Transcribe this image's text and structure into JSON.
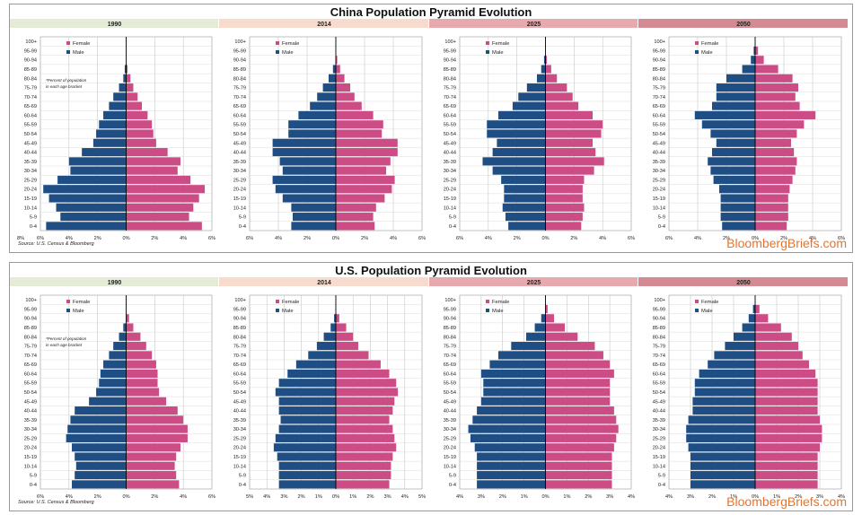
{
  "brand": "BloombergBriefs.com",
  "panels": [
    {
      "title": "China Population Pyramid Evolution",
      "source": "Source: U.S. Census & Bloomberg",
      "header_colors": [
        "#e4ecd8",
        "#f7dccd",
        "#e8a9ae",
        "#d48a92"
      ],
      "note": [
        "*Percent of population",
        "in each age bracket"
      ],
      "chart_data": [
        {
          "type": "bar",
          "year": "1990",
          "xlim": [
            -6,
            6
          ],
          "xticks": [
            -8,
            -6,
            -4,
            -2,
            0,
            2,
            4,
            6
          ],
          "xtick_labels": [
            "8%",
            "6%",
            "4%",
            "2%",
            "0%",
            "2%",
            "4%",
            "6%"
          ],
          "categories": [
            "0-4",
            "5-9",
            "10-14",
            "15-19",
            "20-24",
            "25-29",
            "30-34",
            "35-39",
            "40-44",
            "45-49",
            "50-54",
            "55-59",
            "60-64",
            "65-69",
            "70-74",
            "75-79",
            "80-84",
            "85-89",
            "90-94",
            "95-99",
            "100+"
          ],
          "series": [
            {
              "name": "Female",
              "color": "#cc4d86",
              "values": [
                5.3,
                4.4,
                4.7,
                5.1,
                5.5,
                4.5,
                3.6,
                3.8,
                2.9,
                2.1,
                1.9,
                1.8,
                1.5,
                1.1,
                0.8,
                0.5,
                0.3,
                0.1,
                0,
                0,
                0
              ]
            },
            {
              "name": "Male",
              "color": "#1f4e84",
              "values": [
                -5.6,
                -4.6,
                -4.9,
                -5.4,
                -5.8,
                -4.8,
                -3.9,
                -4.0,
                -3.1,
                -2.3,
                -2.1,
                -1.9,
                -1.6,
                -1.2,
                -0.9,
                -0.5,
                -0.2,
                -0.1,
                0,
                0,
                0
              ]
            }
          ]
        },
        {
          "type": "bar",
          "year": "2014",
          "xlim": [
            -6,
            6
          ],
          "xticks": [
            -6,
            -4,
            -2,
            0,
            2,
            4,
            6
          ],
          "xtick_labels": [
            "6%",
            "4%",
            "2%",
            "0%",
            "2%",
            "4%",
            "6%"
          ],
          "categories": [
            "0-4",
            "5-9",
            "10-14",
            "15-19",
            "20-24",
            "25-29",
            "30-34",
            "35-39",
            "40-44",
            "45-49",
            "50-54",
            "55-59",
            "60-64",
            "65-69",
            "70-74",
            "75-79",
            "80-84",
            "85-89",
            "90-94",
            "95-99",
            "100+"
          ],
          "series": [
            {
              "name": "Female",
              "color": "#cc4d86",
              "values": [
                2.7,
                2.6,
                2.8,
                3.4,
                3.9,
                4.1,
                3.5,
                3.8,
                4.3,
                4.3,
                3.2,
                3.3,
                2.6,
                1.8,
                1.3,
                1.0,
                0.6,
                0.3,
                0.1,
                0,
                0
              ]
            },
            {
              "name": "Male",
              "color": "#1f4e84",
              "values": [
                -3.1,
                -3.0,
                -3.1,
                -3.7,
                -4.2,
                -4.4,
                -3.7,
                -3.9,
                -4.4,
                -4.4,
                -3.3,
                -3.3,
                -2.6,
                -1.8,
                -1.3,
                -0.9,
                -0.5,
                -0.2,
                0,
                0,
                0
              ]
            }
          ]
        },
        {
          "type": "bar",
          "year": "2025",
          "xlim": [
            -6,
            6
          ],
          "xticks": [
            -6,
            -4,
            -2,
            0,
            2,
            4,
            6
          ],
          "xtick_labels": [
            "6%",
            "4%",
            "2%",
            "0%",
            "2%",
            "4%",
            "6%"
          ],
          "categories": [
            "0-4",
            "5-9",
            "10-14",
            "15-19",
            "20-24",
            "25-29",
            "30-34",
            "35-39",
            "40-44",
            "45-49",
            "50-54",
            "55-59",
            "60-64",
            "65-69",
            "70-74",
            "75-79",
            "80-84",
            "85-89",
            "90-94",
            "95-99",
            "100+"
          ],
          "series": [
            {
              "name": "Female",
              "color": "#cc4d86",
              "values": [
                2.5,
                2.6,
                2.7,
                2.6,
                2.6,
                2.7,
                3.4,
                4.1,
                3.5,
                3.3,
                3.9,
                4.0,
                3.3,
                2.3,
                1.9,
                1.5,
                0.8,
                0.4,
                0.1,
                0,
                0
              ]
            },
            {
              "name": "Male",
              "color": "#1f4e84",
              "values": [
                -2.6,
                -2.8,
                -3.0,
                -2.9,
                -2.9,
                -3.1,
                -3.7,
                -4.4,
                -3.7,
                -3.4,
                -4.1,
                -4.1,
                -3.3,
                -2.3,
                -1.9,
                -1.3,
                -0.6,
                -0.3,
                -0.1,
                0,
                0
              ]
            }
          ]
        },
        {
          "type": "bar",
          "year": "2050",
          "xlim": [
            -6,
            6
          ],
          "xticks": [
            -6,
            -4,
            -2,
            0,
            2,
            4,
            6
          ],
          "xtick_labels": [
            "6%",
            "4%",
            "2%",
            "0%",
            "2%",
            "4%",
            "6%"
          ],
          "categories": [
            "0-4",
            "5-9",
            "10-14",
            "15-19",
            "20-24",
            "25-29",
            "30-34",
            "35-39",
            "40-44",
            "45-49",
            "50-54",
            "55-59",
            "60-64",
            "65-69",
            "70-74",
            "75-79",
            "80-84",
            "85-89",
            "90-94",
            "95-99",
            "100+"
          ],
          "series": [
            {
              "name": "Female",
              "color": "#cc4d86",
              "values": [
                2.2,
                2.3,
                2.3,
                2.3,
                2.4,
                2.6,
                2.8,
                2.9,
                2.7,
                2.5,
                2.9,
                3.4,
                4.2,
                3.1,
                2.8,
                3.0,
                2.6,
                1.6,
                0.6,
                0.2,
                0
              ]
            },
            {
              "name": "Male",
              "color": "#1f4e84",
              "values": [
                -2.3,
                -2.4,
                -2.4,
                -2.4,
                -2.5,
                -2.9,
                -3.1,
                -3.3,
                -3.0,
                -2.7,
                -3.1,
                -3.7,
                -4.2,
                -3.0,
                -2.7,
                -2.7,
                -2.0,
                -0.9,
                -0.3,
                -0.1,
                0
              ]
            }
          ]
        }
      ]
    },
    {
      "title": "U.S. Population Pyramid Evolution",
      "source": "Source: U.S. Census & Bloomberg",
      "header_colors": [
        "#e4ecd8",
        "#f7dccd",
        "#e8a9ae",
        "#d48a92"
      ],
      "note": [
        "*Percent of population",
        "in each age bracket"
      ],
      "chart_data": [
        {
          "type": "bar",
          "year": "1990",
          "xlim": [
            -6,
            6
          ],
          "xticks": [
            -6,
            -4,
            -2,
            0,
            2,
            4,
            6
          ],
          "xtick_labels": [
            "6%",
            "4%",
            "2%",
            "0%",
            "2%",
            "4%",
            "6%"
          ],
          "categories": [
            "0-4",
            "5-9",
            "10-14",
            "15-19",
            "20-24",
            "25-29",
            "30-34",
            "35-39",
            "40-44",
            "45-49",
            "50-54",
            "55-59",
            "60-64",
            "65-69",
            "70-74",
            "75-79",
            "80-84",
            "85-89",
            "90-94",
            "95-99",
            "100+"
          ],
          "series": [
            {
              "name": "Female",
              "color": "#cc4d86",
              "values": [
                3.7,
                3.5,
                3.4,
                3.5,
                3.8,
                4.3,
                4.3,
                4.0,
                3.6,
                2.8,
                2.3,
                2.2,
                2.2,
                2.1,
                1.8,
                1.4,
                1.0,
                0.5,
                0.2,
                0,
                0
              ]
            },
            {
              "name": "Male",
              "color": "#1f4e84",
              "values": [
                -3.8,
                -3.6,
                -3.5,
                -3.6,
                -3.8,
                -4.2,
                -4.1,
                -3.9,
                -3.6,
                -2.6,
                -2.1,
                -1.9,
                -1.8,
                -1.6,
                -1.2,
                -0.9,
                -0.5,
                -0.2,
                0,
                0,
                0
              ]
            }
          ]
        },
        {
          "type": "bar",
          "year": "2014",
          "xlim": [
            -5,
            5
          ],
          "xticks": [
            -5,
            -4,
            -3,
            -2,
            -1,
            0,
            1,
            2,
            3,
            4,
            5
          ],
          "xtick_labels": [
            "5%",
            "4%",
            "3%",
            "2%",
            "1%",
            "0%",
            "1%",
            "2%",
            "3%",
            "4%",
            "5%"
          ],
          "categories": [
            "0-4",
            "5-9",
            "10-14",
            "15-19",
            "20-24",
            "25-29",
            "30-34",
            "35-39",
            "40-44",
            "45-49",
            "50-54",
            "55-59",
            "60-64",
            "65-69",
            "70-74",
            "75-79",
            "80-84",
            "85-89",
            "90-94",
            "95-99",
            "100+"
          ],
          "series": [
            {
              "name": "Female",
              "color": "#cc4d86",
              "values": [
                3.1,
                3.2,
                3.2,
                3.3,
                3.5,
                3.4,
                3.3,
                3.1,
                3.3,
                3.4,
                3.6,
                3.5,
                3.1,
                2.6,
                1.9,
                1.3,
                1.0,
                0.6,
                0.2,
                0,
                0
              ]
            },
            {
              "name": "Male",
              "color": "#1f4e84",
              "values": [
                -3.3,
                -3.3,
                -3.3,
                -3.4,
                -3.6,
                -3.5,
                -3.3,
                -3.2,
                -3.3,
                -3.3,
                -3.5,
                -3.3,
                -2.8,
                -2.3,
                -1.6,
                -1.1,
                -0.7,
                -0.3,
                -0.1,
                0,
                0
              ]
            }
          ]
        },
        {
          "type": "bar",
          "year": "2025",
          "xlim": [
            -4,
            4
          ],
          "xticks": [
            -4,
            -3,
            -2,
            -1,
            0,
            1,
            2,
            3,
            4
          ],
          "xtick_labels": [
            "4%",
            "3%",
            "2%",
            "1%",
            "0%",
            "1%",
            "2%",
            "3%",
            "4%"
          ],
          "categories": [
            "0-4",
            "5-9",
            "10-14",
            "15-19",
            "20-24",
            "25-29",
            "30-34",
            "35-39",
            "40-44",
            "45-49",
            "50-54",
            "55-59",
            "60-64",
            "65-69",
            "70-74",
            "75-79",
            "80-84",
            "85-89",
            "90-94",
            "95-99",
            "100+"
          ],
          "series": [
            {
              "name": "Female",
              "color": "#cc4d86",
              "values": [
                3.1,
                3.1,
                3.1,
                3.1,
                3.2,
                3.3,
                3.4,
                3.3,
                3.2,
                3.0,
                3.0,
                3.0,
                3.2,
                3.0,
                2.7,
                2.3,
                1.5,
                0.9,
                0.4,
                0.1,
                0
              ]
            },
            {
              "name": "Male",
              "color": "#1f4e84",
              "values": [
                -3.2,
                -3.2,
                -3.2,
                -3.2,
                -3.3,
                -3.5,
                -3.6,
                -3.4,
                -3.2,
                -3.0,
                -2.9,
                -2.9,
                -3.0,
                -2.6,
                -2.2,
                -1.6,
                -0.9,
                -0.5,
                -0.2,
                0,
                0
              ]
            }
          ]
        },
        {
          "type": "bar",
          "year": "2050",
          "xlim": [
            -4,
            4
          ],
          "xticks": [
            -4,
            -3,
            -2,
            -1,
            0,
            1,
            2,
            3,
            4
          ],
          "xtick_labels": [
            "4%",
            "3%",
            "2%",
            "1%",
            "0%",
            "1%",
            "2%",
            "3%",
            "4%"
          ],
          "categories": [
            "0-4",
            "5-9",
            "10-14",
            "15-19",
            "20-24",
            "25-29",
            "30-34",
            "35-39",
            "40-44",
            "45-49",
            "50-54",
            "55-59",
            "60-64",
            "65-69",
            "70-74",
            "75-79",
            "80-84",
            "85-89",
            "90-94",
            "95-99",
            "100+"
          ],
          "series": [
            {
              "name": "Female",
              "color": "#cc4d86",
              "values": [
                2.9,
                2.9,
                2.9,
                2.9,
                3.0,
                3.1,
                3.1,
                3.0,
                2.9,
                2.9,
                2.9,
                2.9,
                2.8,
                2.5,
                2.2,
                2.0,
                1.7,
                1.2,
                0.6,
                0.2,
                0
              ]
            },
            {
              "name": "Male",
              "color": "#1f4e84",
              "values": [
                -3.0,
                -3.0,
                -3.0,
                -3.0,
                -3.1,
                -3.2,
                -3.2,
                -3.1,
                -2.9,
                -2.9,
                -2.8,
                -2.8,
                -2.6,
                -2.2,
                -1.9,
                -1.4,
                -1.0,
                -0.6,
                -0.3,
                -0.1,
                0
              ]
            }
          ]
        }
      ]
    }
  ]
}
